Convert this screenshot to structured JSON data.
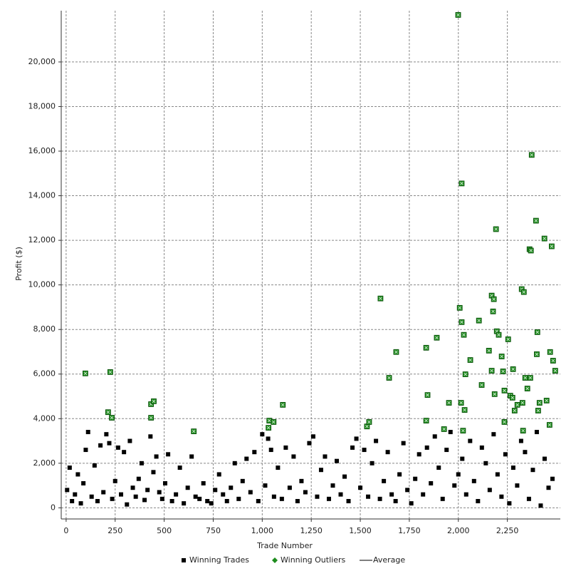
{
  "chart_data": {
    "type": "scatter",
    "xlabel": "Trade Number",
    "ylabel": "Profit ($)",
    "xlim": [
      -25,
      2520
    ],
    "ylim": [
      -500,
      22300
    ],
    "grid": true,
    "legend": "bottom",
    "xticks": [
      0,
      250,
      500,
      750,
      {
        "value": 1000,
        "label": "1,000"
      },
      {
        "value": 1250,
        "label": "1,250"
      },
      {
        "value": 1500,
        "label": "1,500"
      },
      {
        "value": 1750,
        "label": "1,750"
      },
      {
        "value": 2000,
        "label": "2,000"
      },
      {
        "value": 2250,
        "label": "2,250"
      }
    ],
    "yticks": [
      0,
      {
        "value": 2000,
        "label": "2,000"
      },
      {
        "value": 4000,
        "label": "4,000"
      },
      {
        "value": 6000,
        "label": "6,000"
      },
      {
        "value": 8000,
        "label": "8,000"
      },
      {
        "value": 10000,
        "label": "10,000"
      },
      {
        "value": 12000,
        "label": "12,000"
      },
      {
        "value": 14000,
        "label": "14,000"
      },
      {
        "value": 16000,
        "label": "16,000"
      },
      {
        "value": 18000,
        "label": "18,000"
      },
      {
        "value": 20000,
        "label": "20,000"
      }
    ],
    "series": [
      {
        "name": "Winning Trades",
        "color": "#000000",
        "marker": "square",
        "x": [
          5,
          18,
          30,
          45,
          60,
          75,
          88,
          100,
          112,
          130,
          145,
          160,
          175,
          190,
          205,
          220,
          235,
          250,
          265,
          280,
          295,
          310,
          325,
          340,
          355,
          370,
          385,
          400,
          415,
          430,
          445,
          460,
          475,
          490,
          505,
          520,
          540,
          560,
          580,
          600,
          620,
          640,
          660,
          680,
          700,
          720,
          740,
          760,
          780,
          800,
          820,
          840,
          860,
          880,
          900,
          920,
          940,
          960,
          980,
          1000,
          1015,
          1030,
          1045,
          1060,
          1080,
          1100,
          1120,
          1140,
          1160,
          1180,
          1200,
          1220,
          1240,
          1260,
          1280,
          1300,
          1320,
          1340,
          1360,
          1380,
          1400,
          1420,
          1440,
          1460,
          1480,
          1500,
          1520,
          1540,
          1560,
          1580,
          1600,
          1620,
          1640,
          1660,
          1680,
          1700,
          1720,
          1740,
          1760,
          1780,
          1800,
          1820,
          1840,
          1860,
          1880,
          1900,
          1920,
          1940,
          1960,
          1980,
          2000,
          2020,
          2040,
          2060,
          2080,
          2100,
          2120,
          2140,
          2160,
          2180,
          2200,
          2220,
          2240,
          2260,
          2280,
          2300,
          2320,
          2340,
          2360,
          2380,
          2400,
          2420,
          2440,
          2460,
          2480
        ],
        "values": [
          800,
          1800,
          300,
          600,
          1500,
          200,
          1100,
          2600,
          3400,
          500,
          1900,
          300,
          2800,
          700,
          3300,
          2900,
          400,
          1200,
          2700,
          600,
          2500,
          150,
          3000,
          900,
          500,
          1300,
          2000,
          350,
          800,
          3200,
          1600,
          2300,
          700,
          400,
          1100,
          2400,
          300,
          600,
          1800,
          200,
          900,
          2300,
          500,
          400,
          1100,
          300,
          200,
          800,
          1500,
          600,
          300,
          900,
          2000,
          400,
          1200,
          2200,
          700,
          2500,
          300,
          3300,
          1000,
          3100,
          2600,
          500,
          1800,
          400,
          2700,
          900,
          2300,
          300,
          1200,
          700,
          2900,
          3200,
          500,
          1700,
          2300,
          400,
          1000,
          2100,
          600,
          1400,
          300,
          2700,
          3100,
          900,
          2600,
          500,
          2000,
          3000,
          400,
          1200,
          2500,
          600,
          300,
          1500,
          2900,
          800,
          200,
          1300,
          2400,
          600,
          2700,
          1100,
          3200,
          1800,
          400,
          2600,
          3400,
          1000,
          1500,
          2200,
          600,
          3000,
          1200,
          300,
          2700,
          2000,
          800,
          3300,
          1500,
          500,
          2400,
          200,
          1800,
          1000,
          3000,
          2500,
          400,
          1700,
          3400,
          100,
          2200,
          900,
          1300
        ]
      },
      {
        "name": "Winning Outliers",
        "color": "#1e8c1e",
        "marker": "square-x",
        "x": [
          98,
          225,
          214,
          233,
          433,
          447,
          433,
          651,
          1036,
          1058,
          1032,
          1105,
          1534,
          1545,
          1603,
          1647,
          1683,
          1836,
          1843,
          1890,
          1836,
          1927,
          1952,
          1999,
          2007,
          2017,
          2014,
          2028,
          2032,
          2017,
          2036,
          2024,
          2061,
          2105,
          2119,
          2156,
          2170,
          2181,
          2177,
          2170,
          2185,
          2192,
          2196,
          2206,
          2221,
          2228,
          2235,
          2254,
          2265,
          2276,
          2279,
          2287,
          2301,
          2323,
          2334,
          2341,
          2367,
          2363,
          2370,
          2374,
          2396,
          2403,
          2400,
          2407,
          2414,
          2439,
          2450,
          2468,
          2476,
          2483,
          2494,
          2465,
          2327,
          2352,
          2235,
          2330
        ],
        "values": [
          6030,
          6090,
          4290,
          4040,
          4650,
          4780,
          4040,
          3430,
          3910,
          3850,
          3590,
          4620,
          3650,
          3850,
          9390,
          5830,
          6990,
          7180,
          5060,
          7630,
          3910,
          3530,
          4710,
          22110,
          8970,
          8330,
          4710,
          7760,
          4390,
          14550,
          5990,
          3460,
          6630,
          8400,
          5510,
          7050,
          9520,
          9360,
          8810,
          6150,
          5100,
          12500,
          7920,
          7760,
          6790,
          6120,
          5260,
          7560,
          5030,
          4940,
          6220,
          4360,
          4620,
          9810,
          9680,
          5830,
          5830,
          11600,
          11540,
          15830,
          12880,
          7880,
          6890,
          4360,
          4710,
          12080,
          4810,
          6990,
          11730,
          6600,
          6150,
          3720,
          4710,
          5350,
          3850,
          3460
        ]
      },
      {
        "name": "Average",
        "color": "#333333",
        "marker": "line",
        "x": [],
        "values": []
      }
    ]
  }
}
